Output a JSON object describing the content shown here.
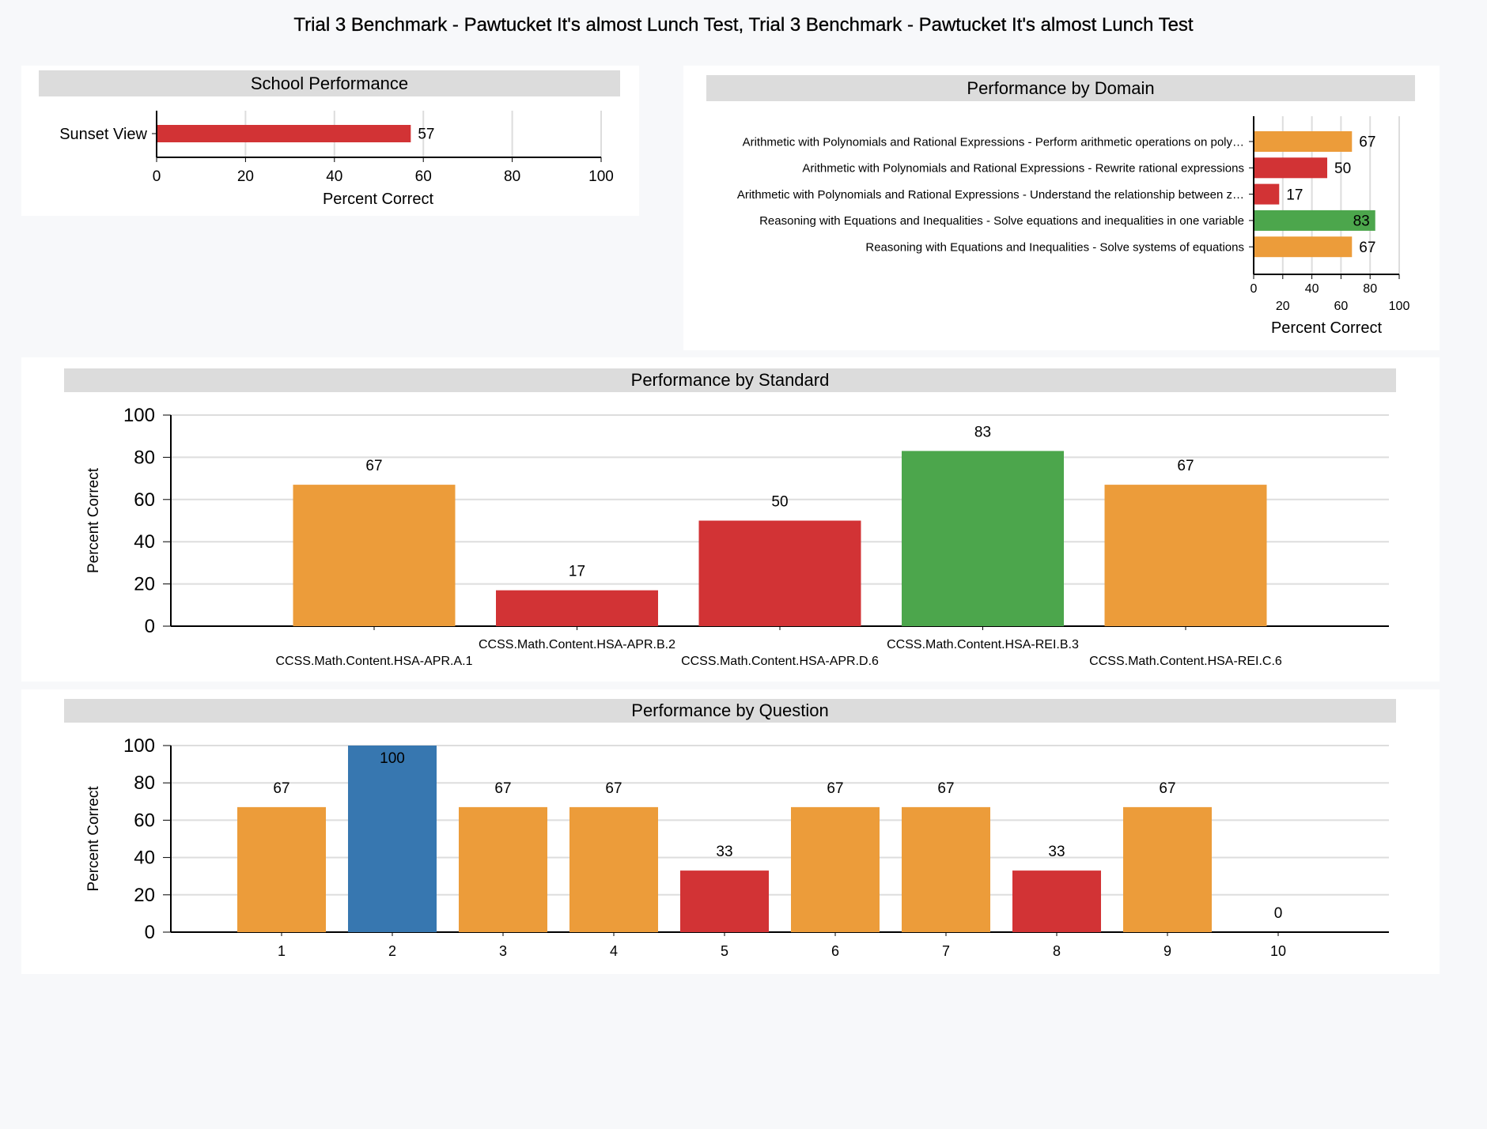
{
  "page": {
    "title": "Trial 3 Benchmark - Pawtucket It's almost Lunch Test, Trial 3 Benchmark - Pawtucket It's almost Lunch Test"
  },
  "colors": {
    "red": "#d23335",
    "orange": "#ec9c3a",
    "green": "#4ca64c",
    "blue": "#3777b0",
    "header_bg": "#dcdcdc",
    "grid": "#dddddd"
  },
  "panels": {
    "school": {
      "title": "School Performance"
    },
    "domain": {
      "title": "Performance by Domain"
    },
    "standard": {
      "title": "Performance by Standard"
    },
    "question": {
      "title": "Performance by Question"
    }
  },
  "chart_data": [
    {
      "id": "school",
      "type": "bar",
      "orientation": "horizontal",
      "title": "School Performance",
      "xlabel": "Percent Correct",
      "ylabel": "",
      "xlim": [
        0,
        100
      ],
      "ticks": [
        0,
        20,
        40,
        60,
        80,
        100
      ],
      "grid": true,
      "categories": [
        "Sunset View"
      ],
      "values": [
        57
      ],
      "colors": [
        "#d23335"
      ]
    },
    {
      "id": "domain",
      "type": "bar",
      "orientation": "horizontal",
      "title": "Performance by Domain",
      "xlabel": "Percent Correct",
      "ylabel": "",
      "xlim": [
        0,
        100
      ],
      "ticks": [
        0,
        20,
        40,
        60,
        80,
        100
      ],
      "grid": true,
      "categories": [
        "Arithmetic with Polynomials and Rational Expressions - Perform arithmetic operations on poly…",
        "Arithmetic with Polynomials and Rational Expressions - Rewrite rational expressions",
        "Arithmetic with Polynomials and Rational Expressions - Understand the relationship between z…",
        "Reasoning with Equations and Inequalities - Solve equations and inequalities in one variable",
        "Reasoning with Equations and Inequalities - Solve systems of equations"
      ],
      "values": [
        67,
        50,
        17,
        83,
        67
      ],
      "colors": [
        "#ec9c3a",
        "#d23335",
        "#d23335",
        "#4ca64c",
        "#ec9c3a"
      ]
    },
    {
      "id": "standard",
      "type": "bar",
      "orientation": "vertical",
      "title": "Performance by Standard",
      "xlabel": "",
      "ylabel": "Percent Correct",
      "ylim": [
        0,
        100
      ],
      "ticks": [
        0,
        20,
        40,
        60,
        80,
        100
      ],
      "grid": true,
      "categories": [
        "CCSS.Math.Content.HSA-APR.A.1",
        "CCSS.Math.Content.HSA-APR.B.2",
        "CCSS.Math.Content.HSA-APR.D.6",
        "CCSS.Math.Content.HSA-REI.B.3",
        "CCSS.Math.Content.HSA-REI.C.6"
      ],
      "values": [
        67,
        17,
        50,
        83,
        67
      ],
      "colors": [
        "#ec9c3a",
        "#d23335",
        "#d23335",
        "#4ca64c",
        "#ec9c3a"
      ]
    },
    {
      "id": "question",
      "type": "bar",
      "orientation": "vertical",
      "title": "Performance by Question",
      "xlabel": "",
      "ylabel": "Percent Correct",
      "ylim": [
        0,
        100
      ],
      "ticks": [
        0,
        20,
        40,
        60,
        80,
        100
      ],
      "grid": true,
      "categories": [
        "1",
        "2",
        "3",
        "4",
        "5",
        "6",
        "7",
        "8",
        "9",
        "10"
      ],
      "values": [
        67,
        100,
        67,
        67,
        33,
        67,
        67,
        33,
        67,
        0
      ],
      "colors": [
        "#ec9c3a",
        "#3777b0",
        "#ec9c3a",
        "#ec9c3a",
        "#d23335",
        "#ec9c3a",
        "#ec9c3a",
        "#d23335",
        "#ec9c3a",
        "#d23335"
      ]
    }
  ]
}
